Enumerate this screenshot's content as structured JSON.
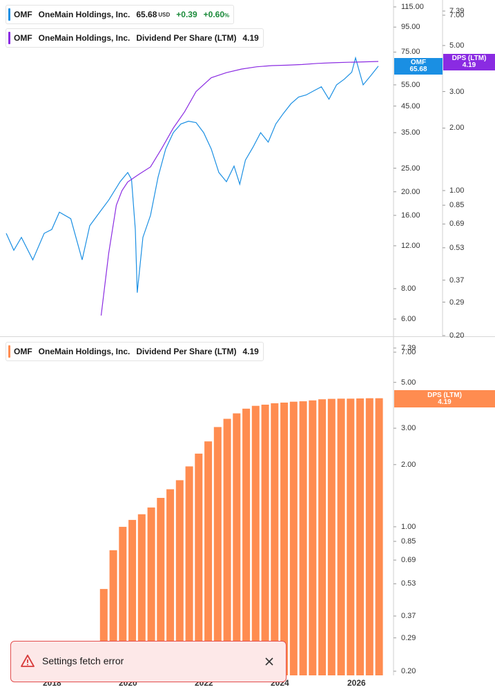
{
  "price_legend": {
    "ticker": "OMF",
    "company": "OneMain Holdings, Inc.",
    "price": "65.68",
    "currency": "USD",
    "change": "+0.39",
    "change_pct": "+0.60",
    "pct_sign": "%"
  },
  "dps_legend_top": {
    "ticker": "OMF",
    "company": "OneMain Holdings, Inc.",
    "metric": "Dividend Per Share (LTM)",
    "value": "4.19"
  },
  "dps_legend_bottom": {
    "ticker": "OMF",
    "company": "OneMain Holdings, Inc.",
    "metric": "Dividend Per Share (LTM)",
    "value": "4.19"
  },
  "badges": {
    "price_label": "OMF",
    "price_value": "65.68",
    "dps_label": "DPS (LTM)",
    "dps_value": "4.19",
    "dps2_label": "DPS (LTM)",
    "dps2_value": "4.19"
  },
  "colors": {
    "price_line": "#1a8fe3",
    "dps_line": "#8a2be2",
    "dps_bars": "#ff8c50",
    "error": "#e24c4c"
  },
  "toast": {
    "message": "Settings fetch error"
  },
  "x_axis_labels": [
    "2018",
    "2020",
    "2022",
    "2024",
    "2026"
  ],
  "chart_data": [
    {
      "type": "line",
      "scale": "log",
      "y_ticks_price": [
        "115.00",
        "95.00",
        "75.00",
        "55.00",
        "45.00",
        "35.00",
        "25.00",
        "20.00",
        "16.00",
        "12.00",
        "8.00",
        "6.00"
      ],
      "y_ticks_dps": [
        "7.39",
        "7.00",
        "5.00",
        "3.00",
        "2.00",
        "1.00",
        "0.85",
        "0.69",
        "0.53",
        "0.37",
        "0.29",
        "0.20"
      ],
      "series": [
        {
          "name": "OMF",
          "x": [
            2016.8,
            2017.0,
            2017.2,
            2017.5,
            2017.8,
            2018.0,
            2018.2,
            2018.5,
            2018.8,
            2019.0,
            2019.2,
            2019.5,
            2019.8,
            2020.0,
            2020.1,
            2020.2,
            2020.25,
            2020.4,
            2020.6,
            2020.8,
            2021.0,
            2021.2,
            2021.4,
            2021.6,
            2021.8,
            2022.0,
            2022.2,
            2022.4,
            2022.6,
            2022.8,
            2022.95,
            2023.1,
            2023.3,
            2023.5,
            2023.7,
            2023.9,
            2024.1,
            2024.3,
            2024.5,
            2024.7,
            2024.9,
            2025.1,
            2025.3,
            2025.5,
            2025.7,
            2025.9,
            2026.0,
            2026.2,
            2026.4,
            2026.6
          ],
          "values": [
            13.5,
            11.5,
            13.0,
            10.5,
            13.5,
            14.0,
            16.5,
            15.5,
            10.5,
            14.5,
            16.0,
            18.5,
            22.0,
            24.0,
            22.5,
            14.0,
            7.7,
            13.0,
            16.0,
            23.0,
            30.0,
            35.0,
            38.0,
            39.0,
            38.5,
            35.0,
            30.0,
            24.0,
            22.0,
            25.5,
            21.5,
            27.0,
            30.5,
            35.0,
            32.0,
            38.0,
            42.0,
            46.0,
            49.0,
            50.0,
            52.0,
            54.0,
            48.0,
            55.0,
            58.0,
            62.0,
            71.0,
            55.0,
            60.0,
            65.68
          ]
        },
        {
          "name": "Dividend Per Share (LTM)",
          "x": [
            2019.3,
            2019.5,
            2019.7,
            2019.85,
            2020.0,
            2020.3,
            2020.6,
            2020.9,
            2021.2,
            2021.5,
            2021.8,
            2022.2,
            2022.6,
            2023.0,
            2023.4,
            2023.8,
            2024.2,
            2024.6,
            2025.0,
            2025.4,
            2025.8,
            2026.2,
            2026.6
          ],
          "values": [
            0.25,
            0.5,
            0.85,
            1.0,
            1.1,
            1.2,
            1.3,
            1.6,
            2.0,
            2.4,
            3.0,
            3.5,
            3.7,
            3.85,
            3.95,
            4.0,
            4.02,
            4.05,
            4.1,
            4.13,
            4.15,
            4.17,
            4.19
          ]
        }
      ]
    },
    {
      "type": "bar",
      "scale": "log",
      "title": "Dividend Per Share (LTM)",
      "y_ticks": [
        "7.39",
        "7.00",
        "5.00",
        "3.00",
        "2.00",
        "1.00",
        "0.85",
        "0.69",
        "0.53",
        "0.37",
        "0.29",
        "0.20"
      ],
      "x": [
        2019.37,
        2019.62,
        2019.87,
        2020.12,
        2020.37,
        2020.62,
        2020.87,
        2021.12,
        2021.37,
        2021.62,
        2021.87,
        2022.12,
        2022.37,
        2022.62,
        2022.87,
        2023.12,
        2023.37,
        2023.62,
        2023.87,
        2024.12,
        2024.37,
        2024.62,
        2024.87,
        2025.12,
        2025.37,
        2025.62,
        2025.87,
        2026.12,
        2026.37,
        2026.62
      ],
      "values": [
        0.5,
        0.77,
        1.0,
        1.08,
        1.15,
        1.24,
        1.38,
        1.52,
        1.68,
        1.96,
        2.26,
        2.59,
        3.04,
        3.33,
        3.54,
        3.73,
        3.85,
        3.9,
        3.96,
        3.99,
        4.03,
        4.05,
        4.09,
        4.14,
        4.16,
        4.17,
        4.17,
        4.18,
        4.19,
        4.19
      ]
    }
  ]
}
